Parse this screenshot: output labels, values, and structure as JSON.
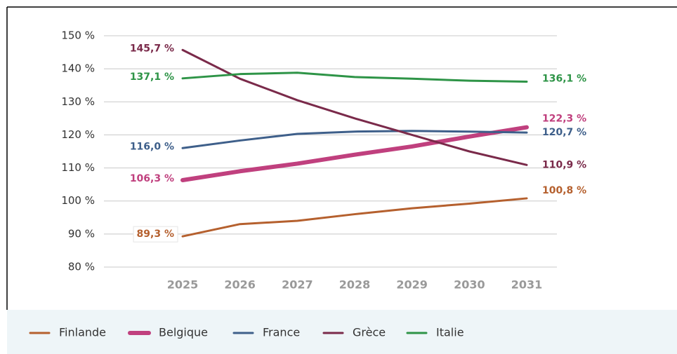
{
  "chart_data": {
    "type": "line",
    "categories": [
      "2025",
      "2026",
      "2027",
      "2028",
      "2029",
      "2030",
      "2031"
    ],
    "ylim": [
      80,
      150
    ],
    "yticks": [
      {
        "value": 80,
        "label": "80 %"
      },
      {
        "value": 90,
        "label": "90 %"
      },
      {
        "value": 100,
        "label": "100 %"
      },
      {
        "value": 110,
        "label": "110 %"
      },
      {
        "value": 120,
        "label": "120 %"
      },
      {
        "value": 130,
        "label": "130 %"
      },
      {
        "value": 140,
        "label": "140 %"
      },
      {
        "value": 150,
        "label": "150 %"
      }
    ],
    "grid": true,
    "legend": "bottom",
    "series": [
      {
        "name": "Finlande",
        "color": "#b5602e",
        "linewidth": 3,
        "values": [
          89.3,
          93,
          94,
          96,
          97.8,
          99.2,
          100.8
        ],
        "value_labels": [
          "89,3 %",
          null,
          null,
          null,
          null,
          null,
          "100,8 %"
        ]
      },
      {
        "name": "Belgique",
        "color": "#c0407e",
        "linewidth": 6,
        "values": [
          106.3,
          109,
          111.3,
          114,
          116.5,
          119.5,
          122.3
        ],
        "value_labels": [
          "106,3 %",
          null,
          null,
          null,
          null,
          null,
          "122,3 %"
        ]
      },
      {
        "name": "France",
        "color": "#3e5f8a",
        "linewidth": 3,
        "values": [
          116.0,
          118.3,
          120.3,
          121,
          121.2,
          121,
          120.7
        ],
        "value_labels": [
          "116,0 %",
          null,
          null,
          null,
          null,
          null,
          "120,7 %"
        ]
      },
      {
        "name": "Grèce",
        "color": "#7a2a4a",
        "linewidth": 3,
        "values": [
          145.7,
          137,
          130.5,
          125,
          120,
          115,
          110.9
        ],
        "value_labels": [
          "145,7 %",
          null,
          null,
          null,
          null,
          null,
          "110,9 %"
        ]
      },
      {
        "name": "Italie",
        "color": "#2e9447",
        "linewidth": 3,
        "values": [
          137.1,
          138.4,
          138.8,
          137.5,
          137,
          136.4,
          136.1
        ],
        "value_labels": [
          "137,1 %",
          null,
          null,
          null,
          null,
          null,
          "136,1 %"
        ]
      }
    ]
  }
}
